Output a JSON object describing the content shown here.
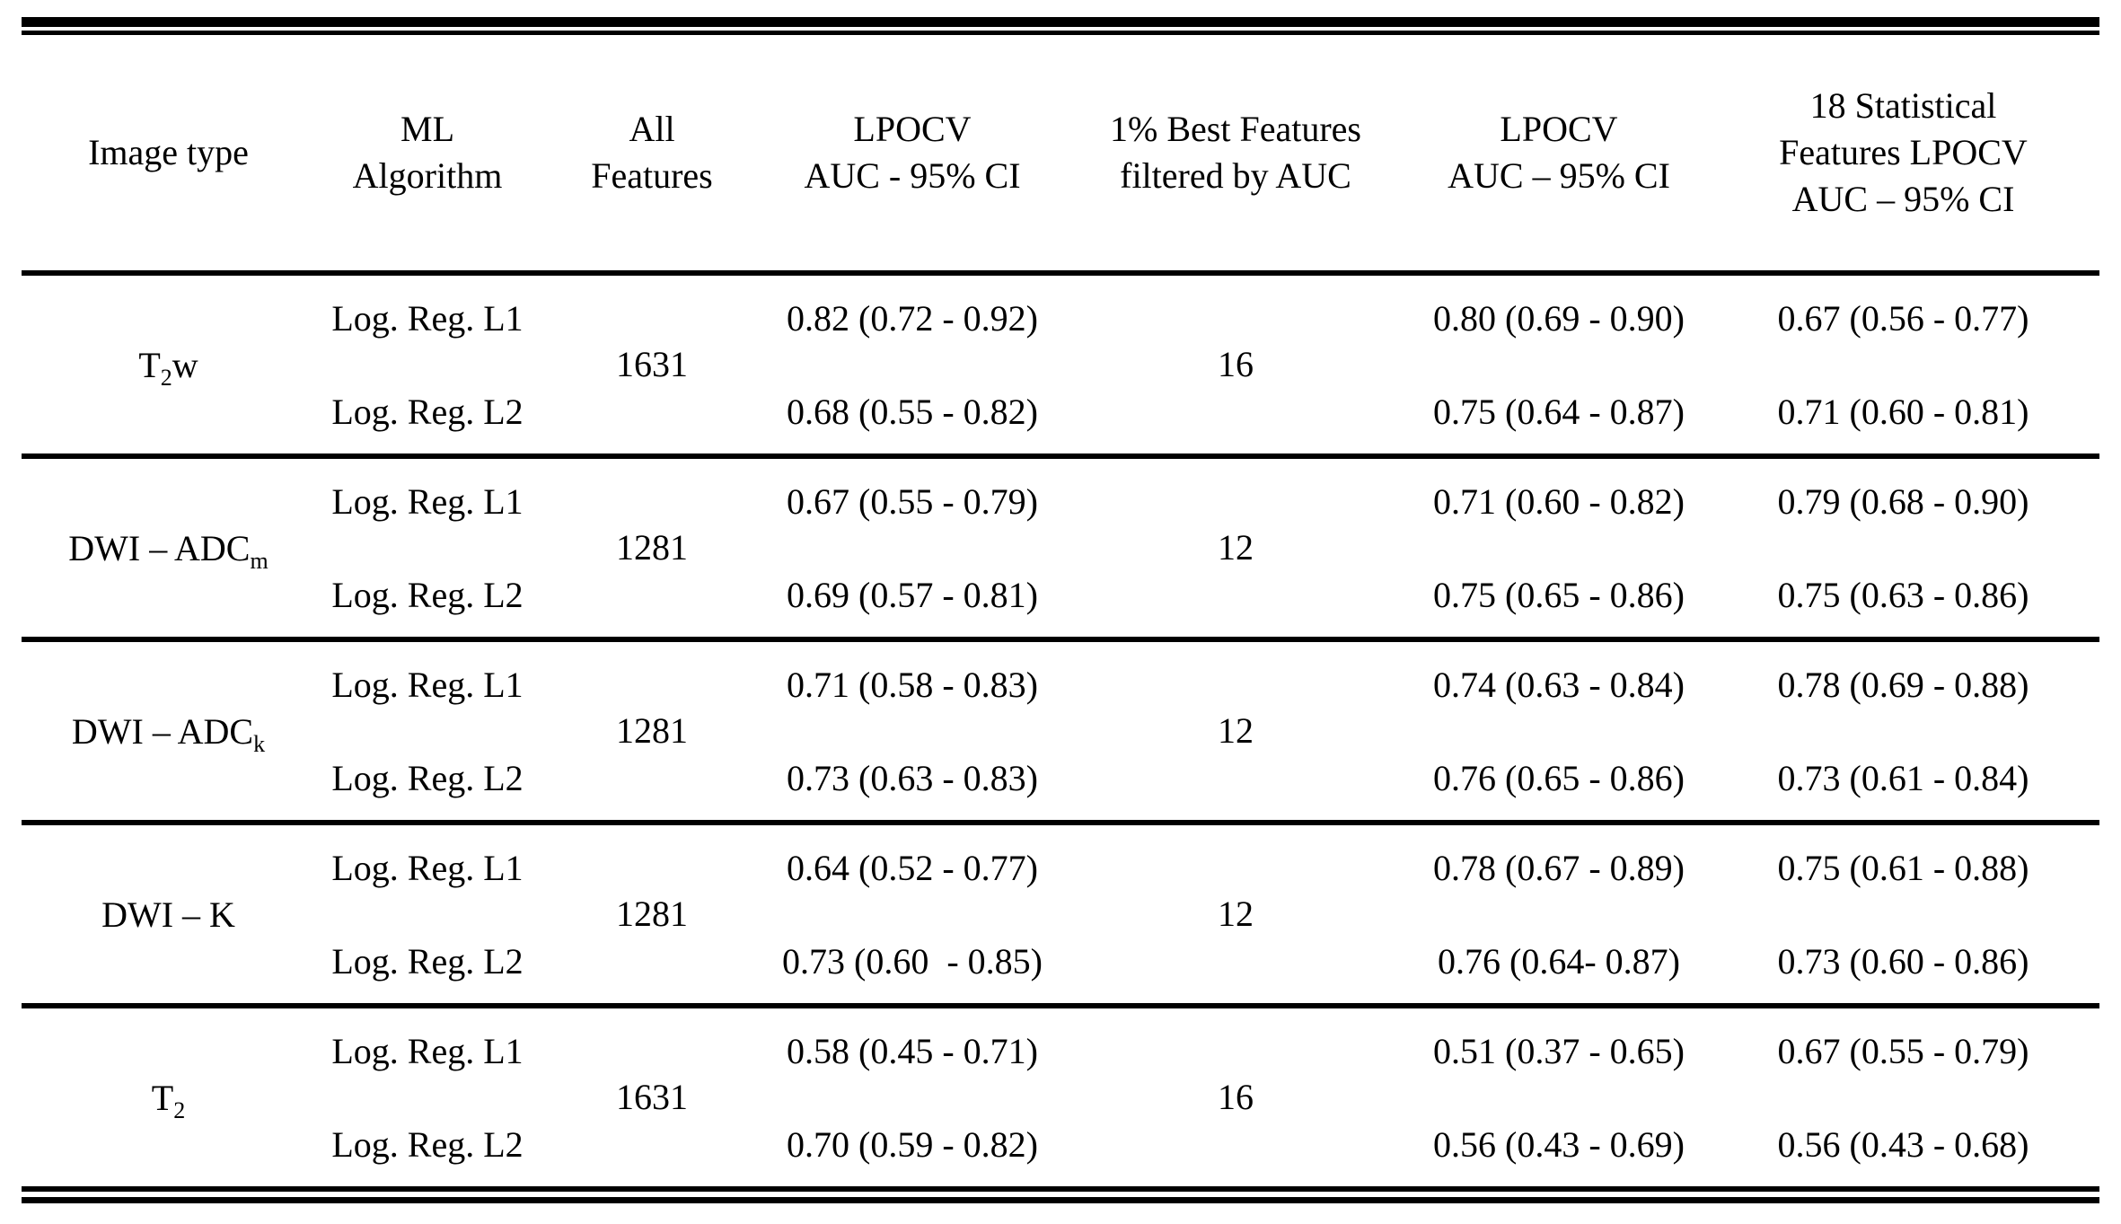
{
  "table": {
    "headers": {
      "image_type": "Image type",
      "ml_algorithm": "ML\nAlgorithm",
      "all_features": "All\nFeatures",
      "lpocv_all": "LPOCV\nAUC - 95% CI",
      "best_features": "1% Best Features\nfiltered by AUC",
      "lpocv_best": "LPOCV\nAUC – 95% CI",
      "stat_features": "18 Statistical\nFeatures LPOCV\nAUC – 95% CI"
    },
    "rows": [
      {
        "image_type": {
          "pre": "T",
          "sub": "2",
          "post": "w"
        },
        "algorithm_l1": "Log. Reg. L1",
        "algorithm_l2": "Log. Reg. L2",
        "all_features": "1631",
        "auc_all_l1": "0.82 (0.72 - 0.92)",
        "auc_all_l2": "0.68 (0.55 - 0.82)",
        "best_features": "16",
        "auc_best_l1": "0.80 (0.69 - 0.90)",
        "auc_best_l2": "0.75 (0.64 - 0.87)",
        "auc_stat_l1": "0.67 (0.56 - 0.77)",
        "auc_stat_l2": "0.71 (0.60 - 0.81)"
      },
      {
        "image_type": {
          "pre": "DWI – ADC",
          "sub": "m",
          "post": ""
        },
        "algorithm_l1": "Log. Reg. L1",
        "algorithm_l2": "Log. Reg. L2",
        "all_features": "1281",
        "auc_all_l1": "0.67 (0.55 - 0.79)",
        "auc_all_l2": "0.69 (0.57 - 0.81)",
        "best_features": "12",
        "auc_best_l1": "0.71 (0.60 - 0.82)",
        "auc_best_l2": "0.75 (0.65 - 0.86)",
        "auc_stat_l1": "0.79 (0.68 - 0.90)",
        "auc_stat_l2": "0.75 (0.63 - 0.86)"
      },
      {
        "image_type": {
          "pre": "DWI – ADC",
          "sub": "k",
          "post": ""
        },
        "algorithm_l1": "Log. Reg. L1",
        "algorithm_l2": "Log. Reg. L2",
        "all_features": "1281",
        "auc_all_l1": "0.71 (0.58 - 0.83)",
        "auc_all_l2": "0.73 (0.63 - 0.83)",
        "best_features": "12",
        "auc_best_l1": "0.74 (0.63 - 0.84)",
        "auc_best_l2": "0.76 (0.65 - 0.86)",
        "auc_stat_l1": "0.78 (0.69 - 0.88)",
        "auc_stat_l2": "0.73 (0.61 - 0.84)"
      },
      {
        "image_type": {
          "pre": "DWI – K",
          "sub": "",
          "post": ""
        },
        "algorithm_l1": "Log. Reg. L1",
        "algorithm_l2": "Log. Reg. L2",
        "all_features": "1281",
        "auc_all_l1": "0.64 (0.52 - 0.77)",
        "auc_all_l2": "0.73 (0.60  - 0.85)",
        "best_features": "12",
        "auc_best_l1": "0.78 (0.67 - 0.89)",
        "auc_best_l2": "0.76 (0.64- 0.87)",
        "auc_stat_l1": "0.75 (0.61 - 0.88)",
        "auc_stat_l2": "0.73 (0.60 - 0.86)"
      },
      {
        "image_type": {
          "pre": "T",
          "sub": "2",
          "post": ""
        },
        "algorithm_l1": "Log. Reg. L1",
        "algorithm_l2": "Log. Reg. L2",
        "all_features": "1631",
        "auc_all_l1": "0.58 (0.45 - 0.71)",
        "auc_all_l2": "0.70 (0.59 - 0.82)",
        "best_features": "16",
        "auc_best_l1": "0.51 (0.37 - 0.65)",
        "auc_best_l2": "0.56 (0.43 - 0.69)",
        "auc_stat_l1": "0.67 (0.55 - 0.79)",
        "auc_stat_l2": "0.56 (0.43 - 0.68)"
      }
    ]
  }
}
